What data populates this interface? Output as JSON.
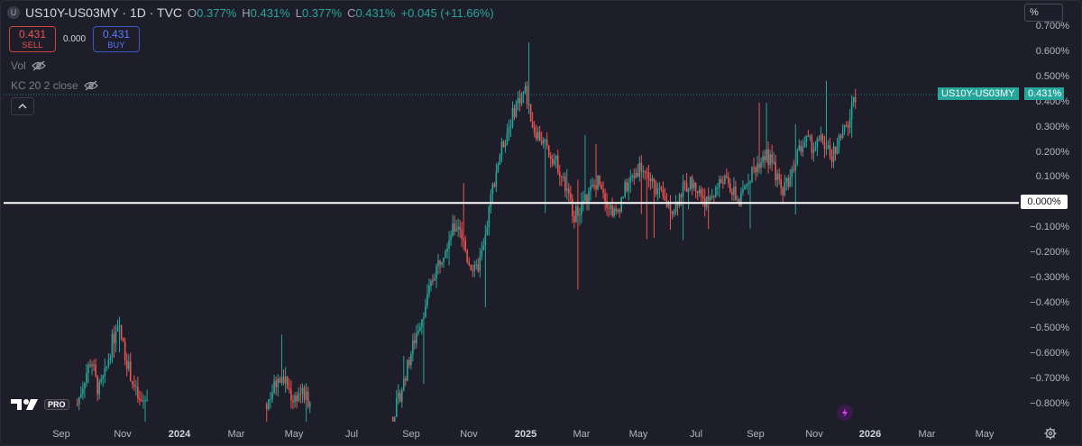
{
  "legend": {
    "badge": "U",
    "title": "US10Y-US03MY · 1D · TVC",
    "o_key": "O",
    "o_val": "0.377%",
    "h_key": "H",
    "h_val": "0.431%",
    "l_key": "L",
    "l_val": "0.377%",
    "c_key": "C",
    "c_val": "0.431%",
    "change": "+0.045 (+11.66%)"
  },
  "trade": {
    "sell_price": "0.431",
    "sell_label": "SELL",
    "spread": "0.000",
    "buy_price": "0.431",
    "buy_label": "BUY"
  },
  "indicators": [
    {
      "label": "Vol"
    },
    {
      "label": "KC 20 2 close"
    }
  ],
  "scale_mode": "%",
  "price_tag": {
    "symbol": "US10Y-US03MY",
    "value": "0.431%"
  },
  "zero_tag": "0.000%",
  "y_axis": [
    "0.700%",
    "0.600%",
    "0.500%",
    "0.400%",
    "0.300%",
    "0.200%",
    "0.100%",
    "0.000%",
    "−0.100%",
    "−0.200%",
    "−0.300%",
    "−0.400%",
    "−0.500%",
    "−0.600%",
    "−0.700%",
    "−0.800%"
  ],
  "x_axis": [
    {
      "label": "Sep",
      "bold": false
    },
    {
      "label": "Nov",
      "bold": false
    },
    {
      "label": "2024",
      "bold": true
    },
    {
      "label": "Mar",
      "bold": false
    },
    {
      "label": "May",
      "bold": false
    },
    {
      "label": "Jul",
      "bold": false
    },
    {
      "label": "Sep",
      "bold": false
    },
    {
      "label": "Nov",
      "bold": false
    },
    {
      "label": "2025",
      "bold": true
    },
    {
      "label": "Mar",
      "bold": false
    },
    {
      "label": "May",
      "bold": false
    },
    {
      "label": "Jul",
      "bold": false
    },
    {
      "label": "Sep",
      "bold": false
    },
    {
      "label": "Nov",
      "bold": false
    },
    {
      "label": "2026",
      "bold": true
    },
    {
      "label": "Mar",
      "bold": false
    },
    {
      "label": "May",
      "bold": false
    }
  ],
  "logo_badge": "PRO",
  "colors": {
    "up": "#26a69a",
    "down": "#ef5350",
    "background": "#1e1e2a",
    "zero_line": "#ffffff"
  },
  "chart_data": {
    "type": "candlestick",
    "y_range_pct": [
      -0.85,
      0.72
    ],
    "x_range": [
      "2023-09",
      "2026-05"
    ],
    "last_close": 0.431,
    "segments": [
      {
        "from": "2023-10-02",
        "to": "2023-12-15",
        "values": [
          -0.8,
          -0.7,
          -0.62,
          -0.75,
          -0.68,
          -0.55,
          -0.5,
          -0.62,
          -0.72,
          -0.8,
          -0.78
        ]
      },
      {
        "from": "2024-04-20",
        "to": "2024-06-05",
        "values": [
          -0.8,
          -0.72,
          -0.7,
          -0.78,
          -0.75,
          -0.8
        ]
      },
      {
        "from": "2024-09-01",
        "to": "2026-01-05",
        "values": [
          -0.85,
          -0.75,
          -0.62,
          -0.5,
          -0.4,
          -0.28,
          -0.2,
          -0.12,
          -0.08,
          -0.22,
          -0.28,
          -0.18,
          0.05,
          0.2,
          0.3,
          0.4,
          0.45,
          0.3,
          0.25,
          0.2,
          0.15,
          0.05,
          -0.05,
          0.0,
          0.05,
          0.1,
          0.0,
          -0.05,
          0.05,
          0.1,
          0.15,
          0.1,
          0.05,
          0.0,
          -0.02,
          0.05,
          0.08,
          0.05,
          0.0,
          0.05,
          0.1,
          0.05,
          0.0,
          0.1,
          0.15,
          0.2,
          0.15,
          0.05,
          0.1,
          0.2,
          0.25,
          0.22,
          0.25,
          0.18,
          0.25,
          0.3,
          0.43
        ]
      }
    ]
  }
}
